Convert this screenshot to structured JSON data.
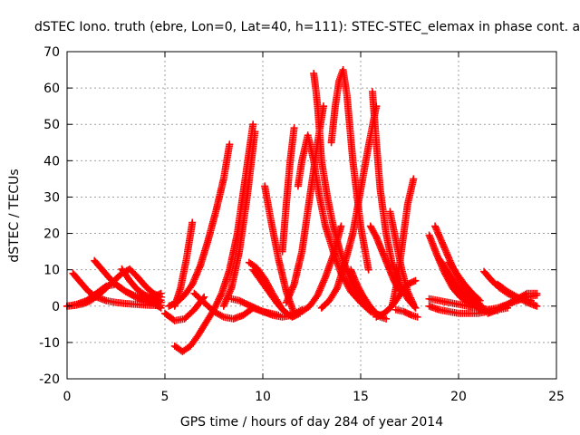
{
  "chart_data": {
    "type": "scatter",
    "title": "dSTEC Iono. truth (ebre, Lon=0, Lat=40, h=111): STEC-STEC_elemax in phase cont. a",
    "xlabel": "GPS time / hours of day 284 of year 2014",
    "ylabel": "dSTEC  / TECUs",
    "xlim": [
      0,
      25
    ],
    "ylim": [
      -20,
      70
    ],
    "xticks": [
      0,
      5,
      10,
      15,
      20,
      25
    ],
    "yticks": [
      -20,
      -10,
      0,
      10,
      20,
      30,
      40,
      50,
      60,
      70
    ],
    "xtick_labels": [
      "0",
      "5",
      "10",
      "15",
      "20",
      "25"
    ],
    "ytick_labels": [
      "-20",
      "-10",
      "0",
      "10",
      "20",
      "30",
      "40",
      "50",
      "60",
      "70"
    ],
    "grid": true,
    "marker": "plus",
    "color": "#ff0000",
    "series": [
      {
        "x": [
          0.0,
          0.4,
          0.8,
          1.2,
          1.6,
          2.0,
          2.4,
          2.8,
          3.2,
          3.6,
          4.0,
          4.4,
          4.8
        ],
        "y": [
          0.0,
          0.2,
          0.6,
          1.5,
          3.0,
          5.0,
          7.0,
          9.0,
          10.2,
          8.0,
          5.5,
          3.5,
          2.5
        ]
      },
      {
        "x": [
          0.3,
          0.7,
          1.1,
          1.5,
          2.0,
          2.5,
          3.0,
          3.5,
          4.0,
          4.5,
          4.8
        ],
        "y": [
          9.0,
          6.5,
          4.0,
          2.5,
          1.5,
          1.0,
          0.7,
          0.5,
          0.3,
          0.2,
          0.2
        ]
      },
      {
        "x": [
          1.4,
          1.8,
          2.2,
          2.6,
          3.0,
          3.4,
          3.8,
          4.2,
          4.6,
          4.8
        ],
        "y": [
          12.5,
          10.0,
          7.5,
          5.5,
          4.0,
          3.0,
          2.5,
          2.0,
          1.8,
          1.6
        ]
      },
      {
        "x": [
          0.0,
          0.5,
          1.0,
          1.5,
          2.0,
          2.5,
          3.0,
          3.5,
          4.0,
          4.5,
          4.8
        ],
        "y": [
          0.0,
          0.5,
          1.5,
          3.5,
          5.5,
          6.0,
          4.0,
          2.5,
          1.5,
          0.5,
          -0.5
        ]
      },
      {
        "x": [
          2.8,
          3.2,
          3.6,
          4.0,
          4.4,
          4.8
        ],
        "y": [
          10.2,
          7.0,
          4.5,
          3.0,
          2.0,
          1.0
        ]
      },
      {
        "x": [
          3.6,
          4.0,
          4.4,
          4.8
        ],
        "y": [
          2.5,
          2.0,
          2.5,
          3.5
        ]
      },
      {
        "x": [
          5.2,
          5.6,
          6.0,
          6.4,
          6.8,
          7.2,
          7.6,
          8.0,
          8.3
        ],
        "y": [
          0.0,
          1.0,
          3.0,
          6.0,
          11.0,
          18.0,
          26.0,
          35.0,
          44.5
        ]
      },
      {
        "x": [
          5.5,
          5.8,
          6.1,
          6.4
        ],
        "y": [
          0.0,
          5.0,
          13.0,
          23.0
        ]
      },
      {
        "x": [
          5.5,
          5.9,
          6.3,
          6.7,
          7.1,
          7.5,
          7.9,
          8.3,
          8.7,
          9.1,
          9.5
        ],
        "y": [
          -11.0,
          -12.5,
          -11.0,
          -8.0,
          -4.5,
          -1.0,
          3.5,
          10.0,
          20.0,
          35.0,
          50.0
        ]
      },
      {
        "x": [
          5.0,
          5.5,
          6.0,
          6.5,
          7.0
        ],
        "y": [
          -2.0,
          -4.0,
          -3.5,
          -1.0,
          2.5
        ]
      },
      {
        "x": [
          6.5,
          7.0,
          7.5,
          8.0,
          8.5,
          9.0,
          9.5
        ],
        "y": [
          3.5,
          1.0,
          -1.5,
          -3.0,
          -3.5,
          -2.5,
          -0.5
        ]
      },
      {
        "x": [
          8.0,
          8.4,
          8.8,
          9.2,
          9.6
        ],
        "y": [
          0.0,
          5.0,
          15.0,
          30.0,
          48.0
        ]
      },
      {
        "x": [
          8.4,
          8.8,
          9.2,
          9.6,
          10.0,
          10.4,
          10.8
        ],
        "y": [
          2.0,
          1.5,
          0.5,
          -0.5,
          -1.5,
          -2.0,
          -2.5
        ]
      },
      {
        "x": [
          9.3,
          9.7,
          10.1,
          10.5,
          10.9
        ],
        "y": [
          12.0,
          10.5,
          7.5,
          3.5,
          0.0
        ]
      },
      {
        "x": [
          9.5,
          9.9,
          10.3,
          10.7,
          11.1,
          11.5,
          11.9
        ],
        "y": [
          10.0,
          7.0,
          4.0,
          1.0,
          -1.5,
          -3.0,
          -2.0
        ]
      },
      {
        "x": [
          9.5,
          10.0,
          10.5,
          11.0,
          11.5,
          12.0
        ],
        "y": [
          -0.5,
          -1.5,
          -2.5,
          -3.0,
          -2.5,
          -1.0
        ]
      },
      {
        "x": [
          10.1,
          10.4,
          10.8,
          11.2,
          11.6
        ],
        "y": [
          33.0,
          24.0,
          13.0,
          4.0,
          -2.0
        ]
      },
      {
        "x": [
          11.0,
          11.2,
          11.4,
          11.6
        ],
        "y": [
          15.0,
          28.0,
          40.0,
          49.0
        ]
      },
      {
        "x": [
          11.8,
          12.0,
          12.3,
          12.6,
          12.9,
          13.2,
          13.6,
          14.0,
          14.5,
          15.0,
          15.5,
          16.0
        ],
        "y": [
          33.0,
          40.0,
          47.0,
          40.0,
          30.0,
          22.0,
          15.0,
          9.0,
          4.0,
          1.0,
          -1.5,
          -2.5
        ]
      },
      {
        "x": [
          12.6,
          12.7,
          12.8,
          12.9,
          13.0,
          13.3,
          13.6,
          14.0,
          14.5,
          15.0,
          15.5
        ],
        "y": [
          64.0,
          60.0,
          55.0,
          48.0,
          40.0,
          30.0,
          22.0,
          14.0,
          7.0,
          2.0,
          -1.0
        ]
      },
      {
        "x": [
          11.2,
          11.6,
          12.0,
          12.4,
          12.8,
          13.1
        ],
        "y": [
          1.0,
          6.0,
          15.0,
          30.0,
          45.0,
          55.0
        ]
      },
      {
        "x": [
          12.0,
          12.4,
          12.8,
          13.2,
          13.6,
          14.0
        ],
        "y": [
          -1.5,
          0.0,
          3.0,
          8.0,
          14.0,
          22.0
        ]
      },
      {
        "x": [
          13.5,
          13.7,
          13.9,
          14.1,
          14.3,
          14.6,
          15.0,
          15.4
        ],
        "y": [
          45.0,
          55.0,
          62.0,
          65.0,
          58.0,
          40.0,
          22.0,
          10.0
        ]
      },
      {
        "x": [
          13.0,
          13.4,
          13.8,
          14.2,
          14.6,
          15.0,
          15.4,
          15.8
        ],
        "y": [
          -0.5,
          1.5,
          5.0,
          12.0,
          20.0,
          32.0,
          44.0,
          55.0
        ]
      },
      {
        "x": [
          14.5,
          14.8,
          15.1,
          15.4,
          15.7,
          16.0,
          16.3
        ],
        "y": [
          10.0,
          6.0,
          3.0,
          0.5,
          -1.5,
          -3.0,
          -3.5
        ]
      },
      {
        "x": [
          15.6,
          15.8,
          16.0,
          16.3,
          16.6,
          17.0,
          17.4,
          17.8
        ],
        "y": [
          59.0,
          45.0,
          32.0,
          20.0,
          12.0,
          6.0,
          2.0,
          -0.5
        ]
      },
      {
        "x": [
          15.5,
          15.8,
          16.1,
          16.4,
          16.7,
          17.0
        ],
        "y": [
          22.0,
          19.0,
          15.0,
          11.0,
          7.0,
          4.0
        ]
      },
      {
        "x": [
          15.8,
          16.2,
          16.6,
          17.0,
          17.4,
          17.8
        ],
        "y": [
          -3.0,
          -2.0,
          0.0,
          3.0,
          6.0,
          7.0
        ]
      },
      {
        "x": [
          16.5,
          16.8,
          17.1,
          17.4,
          17.7
        ],
        "y": [
          26.0,
          18.0,
          10.0,
          4.0,
          0.5
        ]
      },
      {
        "x": [
          16.6,
          16.8,
          17.0,
          17.2,
          17.4,
          17.7
        ],
        "y": [
          0.0,
          5.0,
          12.0,
          20.0,
          28.0,
          35.0
        ]
      },
      {
        "x": [
          16.8,
          17.2,
          17.6,
          17.9
        ],
        "y": [
          -1.0,
          -1.5,
          -2.5,
          -3.0
        ]
      },
      {
        "x": [
          18.5,
          18.9,
          19.3,
          19.7,
          20.1,
          20.5,
          21.0
        ],
        "y": [
          19.5,
          14.0,
          9.0,
          5.0,
          2.5,
          1.0,
          0.0
        ]
      },
      {
        "x": [
          18.8,
          19.2,
          19.6,
          20.0,
          20.4,
          20.8,
          21.2
        ],
        "y": [
          22.0,
          17.0,
          12.0,
          7.5,
          4.0,
          1.5,
          0.0
        ]
      },
      {
        "x": [
          18.5,
          19.0,
          19.5,
          20.0,
          20.5,
          21.0,
          21.5,
          22.0,
          22.5
        ],
        "y": [
          0.0,
          -1.0,
          -1.5,
          -2.0,
          -2.0,
          -2.0,
          -1.5,
          -1.0,
          -0.5
        ]
      },
      {
        "x": [
          19.0,
          19.4,
          19.8,
          20.2,
          20.6,
          21.0,
          21.4
        ],
        "y": [
          13.0,
          10.0,
          6.5,
          3.5,
          1.0,
          -0.5,
          -1.5
        ]
      },
      {
        "x": [
          19.5,
          19.9,
          20.3,
          20.7,
          21.1
        ],
        "y": [
          12.0,
          9.0,
          6.0,
          3.5,
          1.5
        ]
      },
      {
        "x": [
          18.5,
          19.0,
          19.5,
          20.0,
          20.5,
          21.0,
          21.5,
          22.0
        ],
        "y": [
          2.0,
          1.5,
          1.0,
          0.5,
          0.0,
          -0.5,
          -1.0,
          -1.2
        ]
      },
      {
        "x": [
          21.3,
          21.7,
          22.1,
          22.5,
          22.9,
          23.3,
          23.7
        ],
        "y": [
          9.5,
          7.0,
          5.0,
          3.5,
          2.5,
          2.0,
          1.5
        ]
      },
      {
        "x": [
          20.5,
          21.0,
          21.5,
          22.0,
          22.5,
          23.0,
          23.5,
          24.0
        ],
        "y": [
          0.0,
          -0.5,
          -1.0,
          -0.5,
          0.5,
          1.5,
          2.5,
          3.0
        ]
      },
      {
        "x": [
          21.5,
          22.0,
          22.5,
          23.0,
          23.5,
          24.0
        ],
        "y": [
          -2.0,
          -1.0,
          0.5,
          2.0,
          3.5,
          3.5
        ]
      },
      {
        "x": [
          22.0,
          22.5,
          23.0,
          23.5,
          24.0
        ],
        "y": [
          6.0,
          4.0,
          2.5,
          1.0,
          0.0
        ]
      }
    ]
  }
}
